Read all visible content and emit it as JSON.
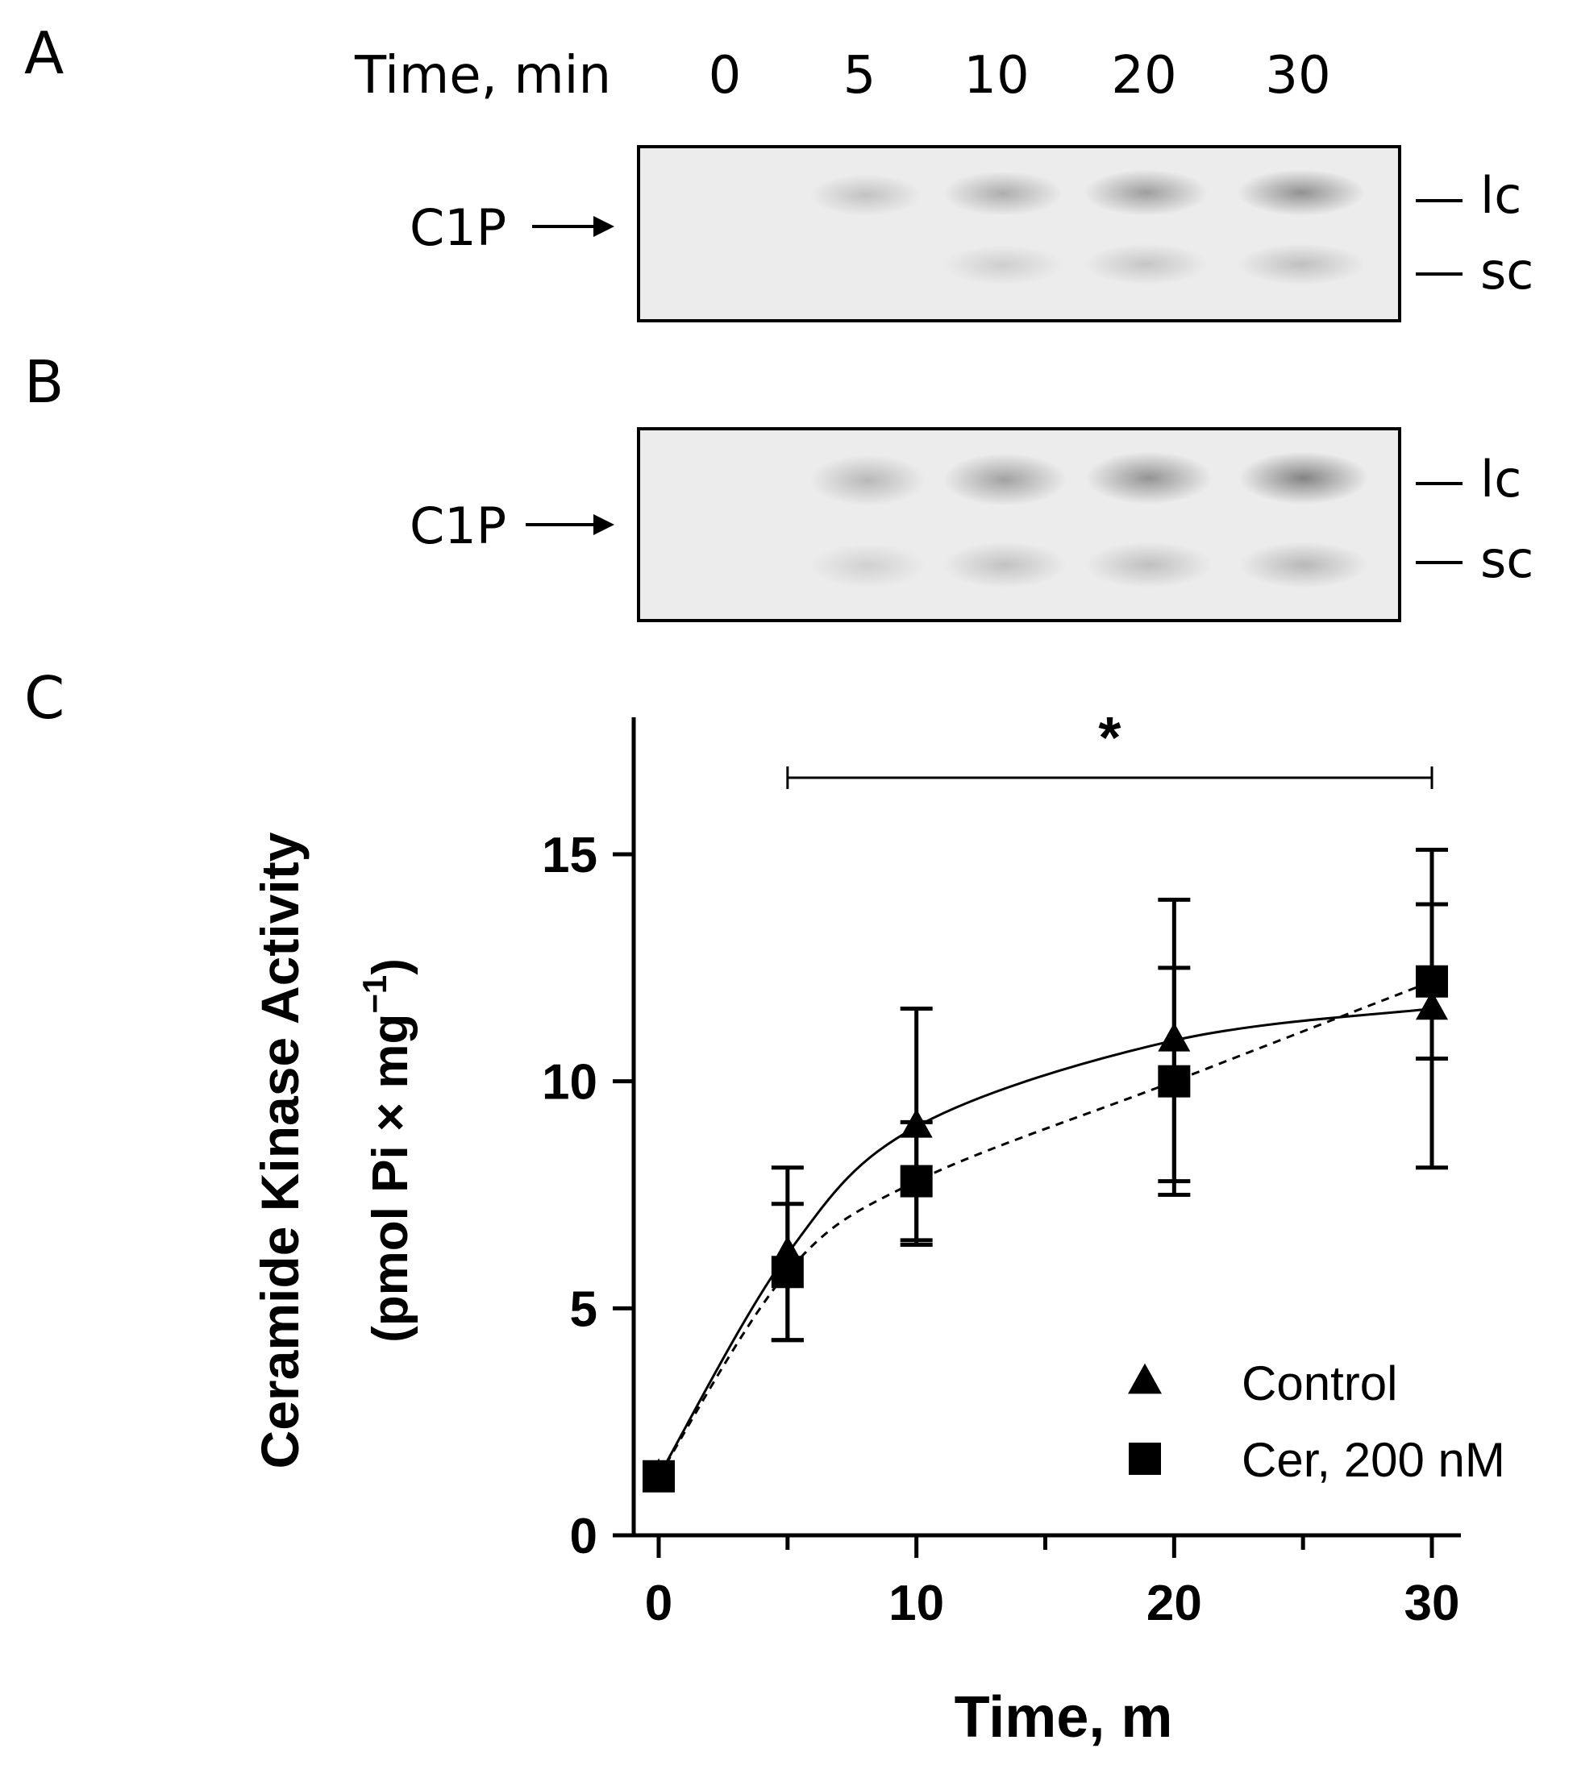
{
  "panels": {
    "a": {
      "letter": "A",
      "time_header": "Time, min",
      "lanes": [
        "0",
        "5",
        "10",
        "20",
        "30"
      ],
      "band_label": "C1P",
      "markers": [
        "lc",
        "sc"
      ]
    },
    "b": {
      "letter": "B",
      "band_label": "C1P",
      "markers": [
        "lc",
        "sc"
      ]
    },
    "c": {
      "letter": "C"
    }
  },
  "chart_data": {
    "type": "line",
    "xlabel": "Time, m",
    "ylabel_line1": "Ceramide Kinase Activity",
    "ylabel_line2": "(pmol Pi × mg",
    "ylabel_sup": "−1",
    "ylabel_close": ")",
    "x": [
      0,
      5,
      10,
      20,
      30
    ],
    "xticks": [
      0,
      10,
      20,
      30
    ],
    "xlim": [
      -1,
      31
    ],
    "ylim": [
      0,
      18
    ],
    "yticks": [
      0,
      5,
      10,
      15
    ],
    "series": [
      {
        "name": "Control",
        "marker": "triangle",
        "line": "solid",
        "values": [
          1.3,
          6.2,
          9.0,
          10.9,
          11.6
        ],
        "err": [
          0.3,
          1.9,
          2.6,
          3.1,
          3.5
        ]
      },
      {
        "name": "Cer, 200 nM",
        "marker": "square",
        "line": "dashed",
        "values": [
          1.3,
          5.8,
          7.8,
          10.0,
          12.2
        ],
        "err": [
          0.3,
          1.5,
          1.3,
          2.5,
          1.7
        ]
      }
    ],
    "significance": {
      "label": "*",
      "from": 5,
      "to": 30
    },
    "legend_position": "bottom-right"
  }
}
